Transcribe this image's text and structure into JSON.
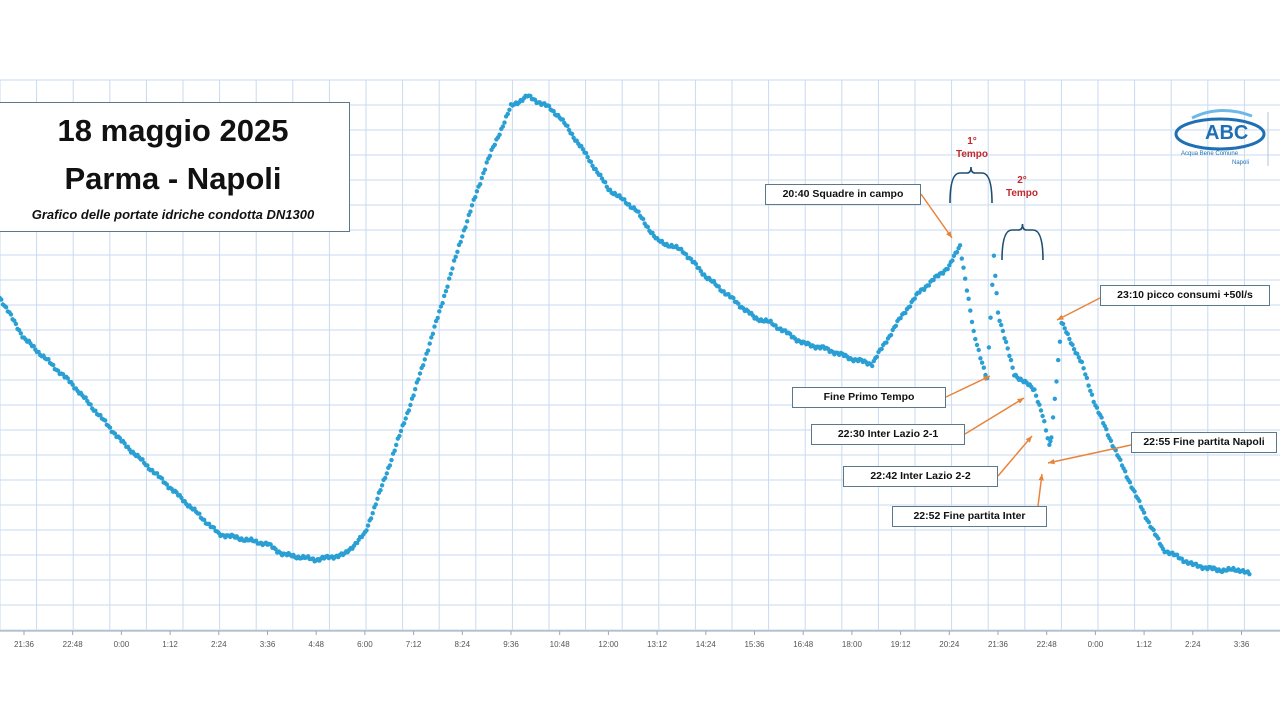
{
  "title": {
    "date": "18 maggio 2025",
    "match": "Parma - Napoli",
    "subtitle": "Grafico delle portate idriche condotta DN1300"
  },
  "logo": {
    "text": "ABC",
    "sub1": "Acqua Bene Comune",
    "sub2": "Napoli"
  },
  "colors": {
    "series": "#2a9fd4",
    "annotation_arrow": "#e8843a",
    "half_label": "#c0282d",
    "grid": "#c9daf0"
  },
  "annotations": [
    "20:40 Squadre in campo",
    "Fine Primo Tempo",
    "22:30 Inter Lazio 2-1",
    "22:42 Inter Lazio 2-2",
    "22:52 Fine partita Inter",
    "22:55 Fine partita Napoli",
    "23:10 picco consumi +50l/s"
  ],
  "half_labels": [
    "1°\nTempo",
    "2°\nTempo"
  ],
  "chart_data": {
    "type": "scatter",
    "title": "18 maggio 2025 Parma - Napoli",
    "subtitle": "Grafico delle portate idriche condotta DN1300",
    "x_tick_labels": [
      "21:36",
      "22:48",
      "0:00",
      "1:12",
      "2:24",
      "3:36",
      "4:48",
      "6:00",
      "7:12",
      "8:24",
      "9:36",
      "10:48",
      "12:00",
      "13:12",
      "14:24",
      "15:36",
      "16:48",
      "18:00",
      "19:12",
      "20:24",
      "21:36",
      "22:48",
      "0:00",
      "1:12",
      "2:24",
      "3:36"
    ],
    "grid": true,
    "legend": "none",
    "series": [
      {
        "values_note_units": "relative flow (0 = chart bottom, 100 = chart top)",
        "x": [
          "21:00",
          "21:36",
          "22:48",
          "0:00",
          "1:12",
          "2:24",
          "3:36",
          "4:00",
          "4:48",
          "5:30",
          "6:00",
          "6:30",
          "7:12",
          "7:50",
          "8:24",
          "9:00",
          "9:36",
          "10:00",
          "10:30",
          "10:48",
          "11:20",
          "12:00",
          "12:40",
          "13:12",
          "13:50",
          "14:24",
          "15:00",
          "15:36",
          "16:00",
          "16:48",
          "17:20",
          "18:00",
          "18:30",
          "19:12",
          "19:40",
          "20:24",
          "20:40",
          "21:00",
          "21:20",
          "21:30",
          "21:36",
          "22:00",
          "22:30",
          "22:42",
          "22:52",
          "22:55",
          "23:10",
          "23:40",
          "0:00",
          "0:30",
          "1:12",
          "1:40",
          "2:24",
          "3:00",
          "3:36",
          "3:50"
        ],
        "y": [
          60,
          52,
          43,
          32,
          23,
          14,
          12,
          10,
          9,
          10,
          14,
          25,
          41,
          57,
          72,
          86,
          97,
          99,
          97,
          95,
          89,
          81,
          77,
          71,
          69,
          64,
          60,
          56,
          55,
          51,
          50,
          48,
          47,
          56,
          61,
          66,
          70,
          53,
          44,
          68,
          57,
          45,
          42,
          37,
          31,
          33,
          55,
          47,
          39,
          30,
          18,
          11,
          8,
          7,
          7,
          6
        ]
      }
    ]
  }
}
